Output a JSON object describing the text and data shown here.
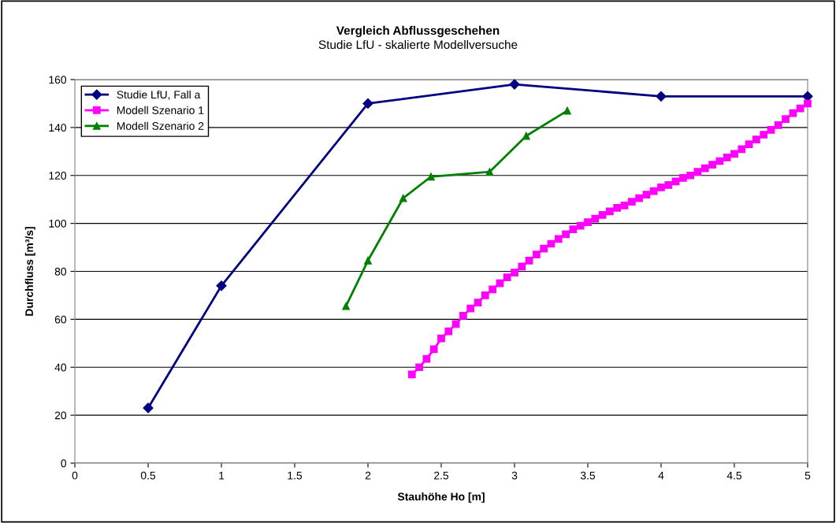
{
  "chart_data": {
    "type": "line",
    "title": "Vergleich Abflussgeschehen",
    "subtitle": "Studie LfU - skalierte Modellversuche",
    "xlabel": "Stauhöhe Ho [m]",
    "ylabel": "Durchfluss [m³/s]",
    "xlim": [
      0,
      5
    ],
    "xticks": [
      0,
      0.5,
      1,
      1.5,
      2,
      2.5,
      3,
      3.5,
      4,
      4.5,
      5
    ],
    "ylim": [
      0,
      160
    ],
    "yticks": [
      0,
      20,
      40,
      60,
      80,
      100,
      120,
      140,
      160
    ],
    "grid": "y",
    "legend": "top left",
    "series": [
      {
        "name": "Studie LfU, Fall a",
        "color": "#000080",
        "marker": "diamond",
        "x": [
          0.5,
          1,
          2,
          3,
          4,
          5
        ],
        "values": [
          23,
          74,
          150,
          158,
          153,
          153
        ]
      },
      {
        "name": "Modell Szenario 1",
        "color": "#ff00ff",
        "marker": "square",
        "x": [
          2.3,
          2.35,
          2.4,
          2.45,
          2.5,
          2.55,
          2.6,
          2.65,
          2.7,
          2.75,
          2.8,
          2.85,
          2.9,
          2.95,
          3.0,
          3.05,
          3.1,
          3.15,
          3.2,
          3.25,
          3.3,
          3.35,
          3.4,
          3.45,
          3.5,
          3.55,
          3.6,
          3.65,
          3.7,
          3.75,
          3.8,
          3.85,
          3.9,
          3.95,
          4.0,
          4.05,
          4.1,
          4.15,
          4.2,
          4.25,
          4.3,
          4.35,
          4.4,
          4.45,
          4.5,
          4.55,
          4.6,
          4.65,
          4.7,
          4.75,
          4.8,
          4.85,
          4.9,
          4.95,
          5.0
        ],
        "values": [
          37,
          40,
          43.5,
          47.5,
          52,
          55,
          58,
          61.5,
          64.5,
          67,
          70,
          72.5,
          75,
          77.5,
          79.5,
          82,
          84.5,
          87,
          89.5,
          91.5,
          93.5,
          95.5,
          97.5,
          99,
          100.5,
          102,
          103.5,
          105,
          106.5,
          107.5,
          109,
          110.5,
          112,
          113.5,
          115,
          116,
          117.5,
          119,
          120,
          121.5,
          123,
          124.5,
          126,
          127.5,
          129,
          131,
          133,
          135,
          137,
          139,
          141,
          143.5,
          146,
          148,
          150
        ]
      },
      {
        "name": "Modell Szenario 2",
        "color": "#008000",
        "marker": "triangle",
        "x": [
          1.85,
          2.0,
          2.24,
          2.43,
          2.83,
          3.08,
          3.36
        ],
        "values": [
          65.5,
          84.5,
          110.5,
          119.5,
          121.5,
          136.5,
          147
        ]
      }
    ]
  }
}
